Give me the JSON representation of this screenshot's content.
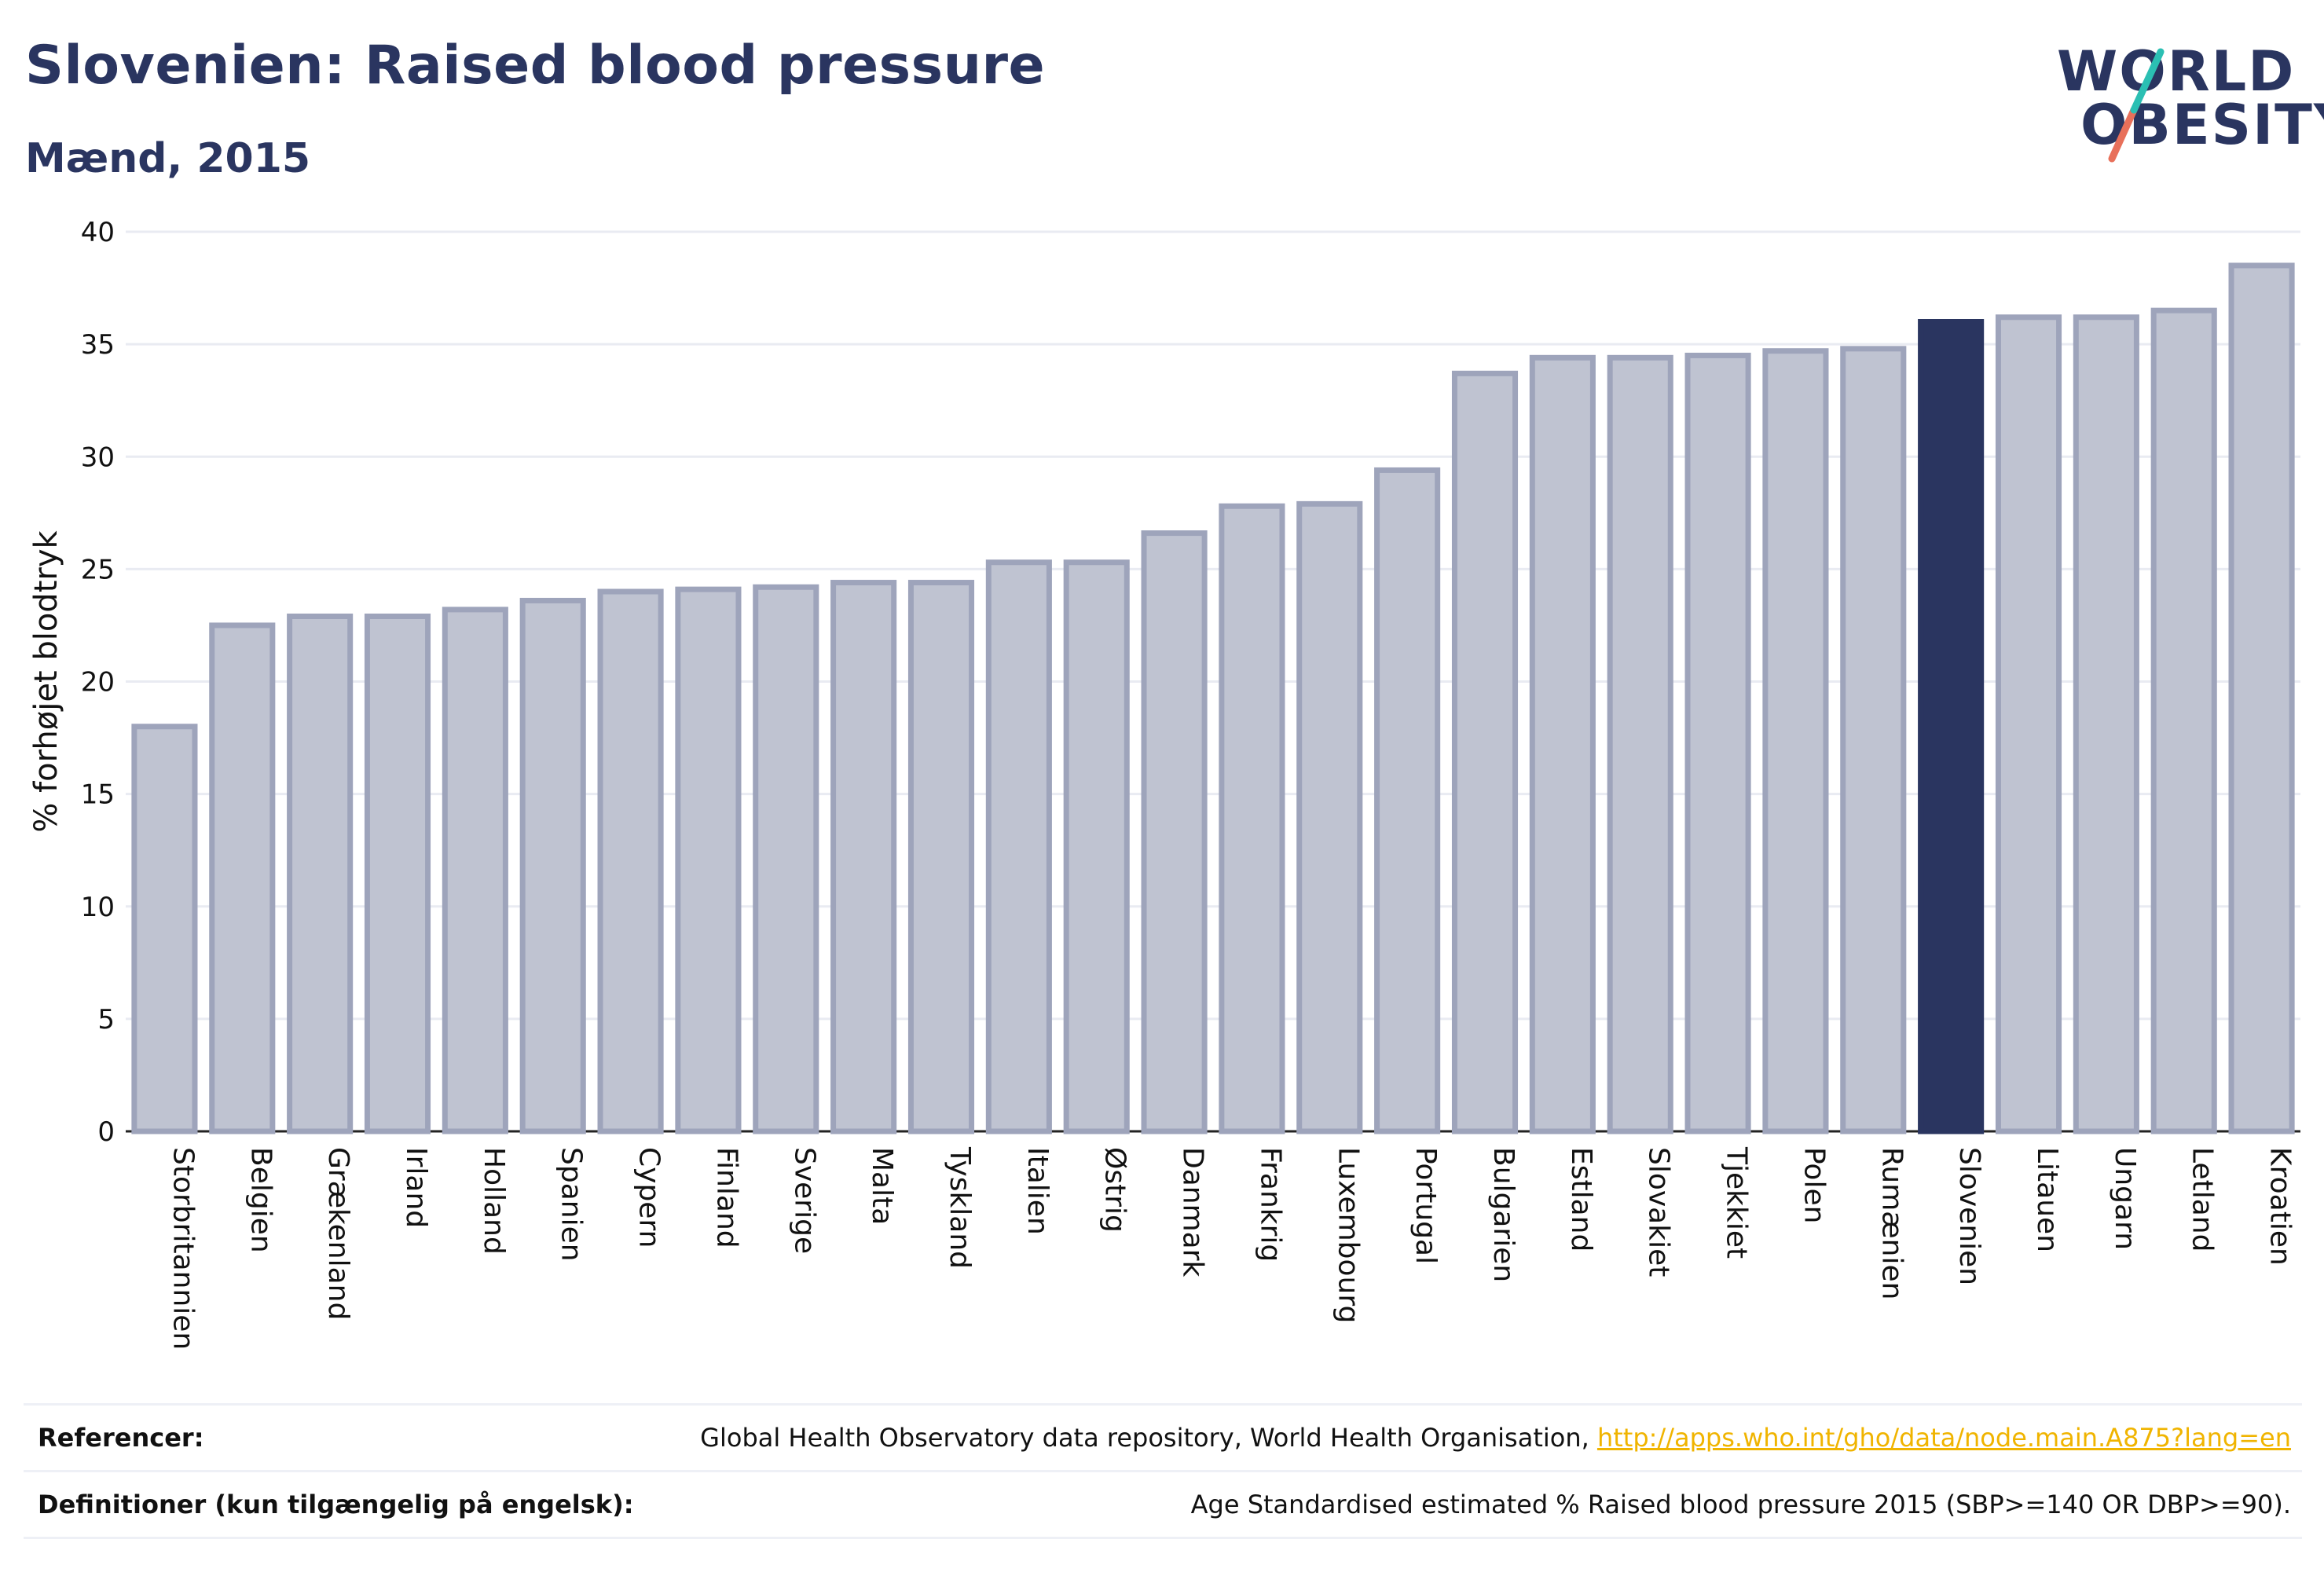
{
  "header": {
    "title": "Slovenien: Raised blood pressure",
    "subtitle": "Mænd, 2015"
  },
  "logo": {
    "line1": "WORLD",
    "line2": "OBESITY",
    "colors": {
      "text": "#2a3560",
      "slash_teal": "#2bbfb3",
      "slash_coral": "#e8705a"
    }
  },
  "chart_data": {
    "type": "bar",
    "title": "Slovenien: Raised blood pressure",
    "subtitle": "Mænd, 2015",
    "xlabel": "",
    "ylabel": "% forhøjet blodtryk",
    "ylim": [
      0,
      40
    ],
    "yticks": [
      0,
      5,
      10,
      15,
      20,
      25,
      30,
      35,
      40
    ],
    "grid": true,
    "highlight": "Slovenien",
    "colors": {
      "bar": "#bfc3d1",
      "bar_border": "#9ea4bb",
      "highlight": "#2a3560"
    },
    "categories": [
      "Storbritannien",
      "Belgien",
      "Grækenland",
      "Irland",
      "Holland",
      "Spanien",
      "Cypern",
      "Finland",
      "Sverige",
      "Malta",
      "Tyskland",
      "Italien",
      "Østrig",
      "Danmark",
      "Frankrig",
      "Luxembourg",
      "Portugal",
      "Bulgarien",
      "Estland",
      "Slovakiet",
      "Tjekkiet",
      "Polen",
      "Rumænien",
      "Slovenien",
      "Litauen",
      "Ungarn",
      "Letland",
      "Kroatien"
    ],
    "values": [
      18.0,
      22.5,
      22.9,
      22.9,
      23.2,
      23.6,
      24.0,
      24.1,
      24.2,
      24.4,
      24.4,
      25.3,
      25.3,
      26.6,
      27.8,
      27.9,
      29.4,
      33.7,
      34.4,
      34.4,
      34.5,
      34.7,
      34.8,
      36.0,
      36.2,
      36.2,
      36.5,
      38.5
    ]
  },
  "footer": {
    "references_label": "Referencer:",
    "references_text": "Global Health Observatory data repository, World Health Organisation, ",
    "references_link": "http://apps.who.int/gho/data/node.main.A875?lang=en",
    "definitions_label": "Definitioner (kun tilgængelig på engelsk):",
    "definitions_text": "Age Standardised estimated % Raised blood pressure 2015 (SBP>=140 OR DBP>=90)."
  }
}
